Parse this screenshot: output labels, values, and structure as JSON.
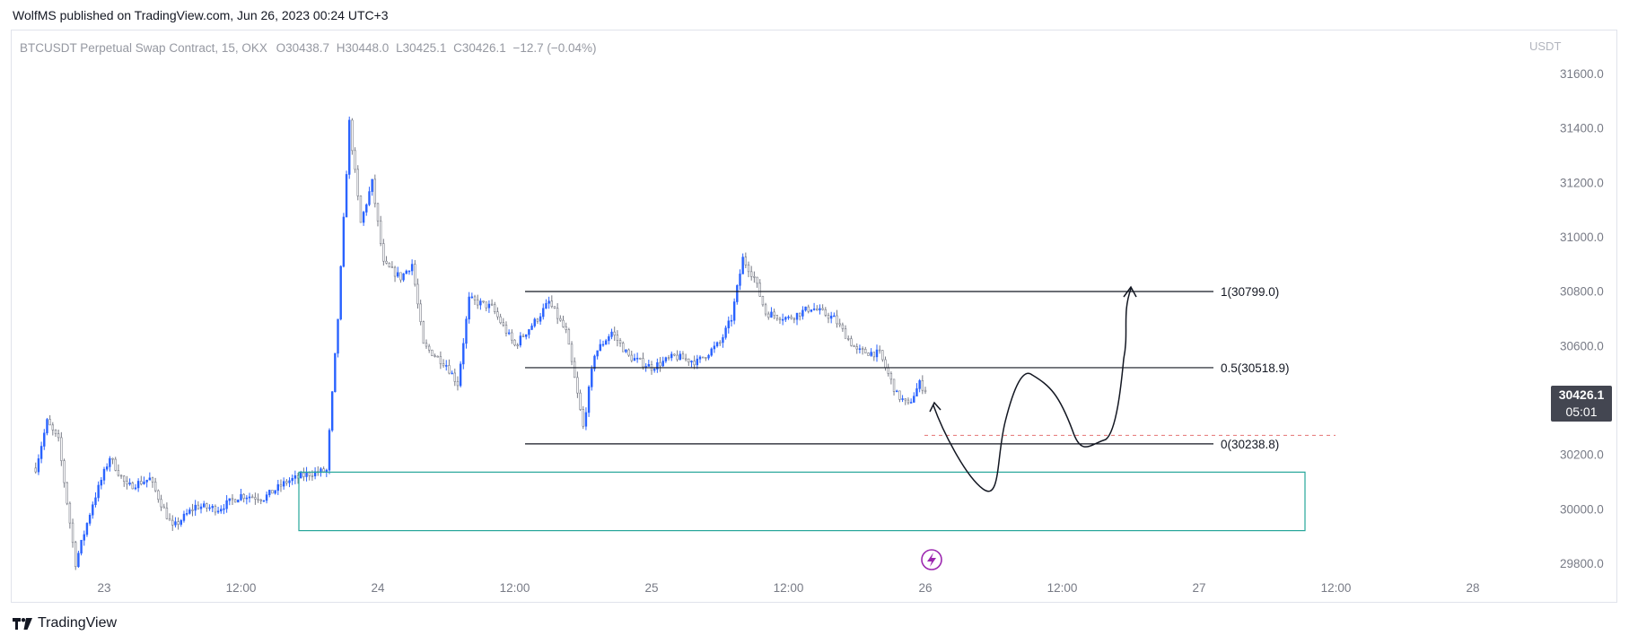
{
  "header": {
    "publisher_text": "WolfMS published on TradingView.com, Jun 26, 2023 00:24 UTC+3"
  },
  "legend": {
    "symbol": "BTCUSDT Perpetual Swap Contract, 15, OKX",
    "open_label": "O",
    "open": "30438.7",
    "high_label": "H",
    "high": "30448.0",
    "low_label": "L",
    "low": "30425.1",
    "close_label": "C",
    "close": "30426.1",
    "change": "−12.7 (−0.04%)"
  },
  "price_axis": {
    "currency": "USDT"
  },
  "last_price": {
    "value": "30426.1",
    "countdown": "05:01"
  },
  "brand": {
    "name": "TradingView",
    "logo": "tradingview-logo"
  },
  "colors": {
    "up": "#2962ff",
    "down": "#787b86",
    "zone": "#26a69a",
    "dashed": "#e57373",
    "event": "#9c27b0"
  },
  "icons": {
    "event_marker": "lightning-icon"
  },
  "chart_data": {
    "type": "candlestick",
    "symbol": "BTCUSDT",
    "interval": "15",
    "ylim": [
      29750,
      31700
    ],
    "yticks": [
      29800,
      30000,
      30200,
      30400,
      30600,
      30800,
      31000,
      31200,
      31400,
      31600
    ],
    "ytick_labels": [
      "29800.0",
      "30000.0",
      "30200.0",
      "30400.0",
      "30600.0",
      "30800.0",
      "31000.0",
      "31200.0",
      "31400.0",
      "31600.0"
    ],
    "x_range": [
      "2023-06-22 18:00",
      "2023-06-28 18:00"
    ],
    "xticks": [
      {
        "t": "2023-06-23 00:00",
        "label": "23"
      },
      {
        "t": "2023-06-23 12:00",
        "label": "12:00"
      },
      {
        "t": "2023-06-24 00:00",
        "label": "24"
      },
      {
        "t": "2023-06-24 12:00",
        "label": "12:00"
      },
      {
        "t": "2023-06-25 00:00",
        "label": "25"
      },
      {
        "t": "2023-06-25 12:00",
        "label": "12:00"
      },
      {
        "t": "2023-06-26 00:00",
        "label": "26"
      },
      {
        "t": "2023-06-26 12:00",
        "label": "12:00"
      },
      {
        "t": "2023-06-27 00:00",
        "label": "27"
      },
      {
        "t": "2023-06-27 12:00",
        "label": "12:00"
      },
      {
        "t": "2023-06-28 00:00",
        "label": "28"
      }
    ],
    "price_path": [
      [
        "2023-06-22 18:00",
        30150
      ],
      [
        "2023-06-22 19:00",
        30320
      ],
      [
        "2023-06-22 20:00",
        30250
      ],
      [
        "2023-06-22 21:30",
        29800
      ],
      [
        "2023-06-22 23:00",
        30020
      ],
      [
        "2023-06-23 00:30",
        30190
      ],
      [
        "2023-06-23 02:00",
        30080
      ],
      [
        "2023-06-23 04:00",
        30110
      ],
      [
        "2023-06-23 06:00",
        29930
      ],
      [
        "2023-06-23 08:00",
        30010
      ],
      [
        "2023-06-23 10:00",
        30000
      ],
      [
        "2023-06-23 12:00",
        30050
      ],
      [
        "2023-06-23 14:00",
        30040
      ],
      [
        "2023-06-23 16:00",
        30100
      ],
      [
        "2023-06-23 18:00",
        30130
      ],
      [
        "2023-06-23 19:30",
        30140
      ],
      [
        "2023-06-23 20:30",
        30700
      ],
      [
        "2023-06-23 21:30",
        31420
      ],
      [
        "2023-06-23 22:30",
        31050
      ],
      [
        "2023-06-23 23:30",
        31200
      ],
      [
        "2023-06-24 00:30",
        30900
      ],
      [
        "2023-06-24 02:00",
        30850
      ],
      [
        "2023-06-24 03:00",
        30900
      ],
      [
        "2023-06-24 04:00",
        30600
      ],
      [
        "2023-06-24 06:00",
        30530
      ],
      [
        "2023-06-24 07:00",
        30460
      ],
      [
        "2023-06-24 08:00",
        30770
      ],
      [
        "2023-06-24 10:00",
        30740
      ],
      [
        "2023-06-24 12:00",
        30600
      ],
      [
        "2023-06-24 14:00",
        30700
      ],
      [
        "2023-06-24 15:00",
        30760
      ],
      [
        "2023-06-24 16:30",
        30650
      ],
      [
        "2023-06-24 17:30",
        30420
      ],
      [
        "2023-06-24 18:00",
        30300
      ],
      [
        "2023-06-24 19:00",
        30570
      ],
      [
        "2023-06-24 20:30",
        30650
      ],
      [
        "2023-06-24 22:00",
        30560
      ],
      [
        "2023-06-25 00:00",
        30520
      ],
      [
        "2023-06-25 02:00",
        30560
      ],
      [
        "2023-06-25 04:00",
        30540
      ],
      [
        "2023-06-25 06:00",
        30610
      ],
      [
        "2023-06-25 07:00",
        30700
      ],
      [
        "2023-06-25 08:00",
        30920
      ],
      [
        "2023-06-25 09:00",
        30850
      ],
      [
        "2023-06-25 10:00",
        30720
      ],
      [
        "2023-06-25 12:00",
        30700
      ],
      [
        "2023-06-25 14:00",
        30740
      ],
      [
        "2023-06-25 16:00",
        30700
      ],
      [
        "2023-06-25 18:00",
        30580
      ],
      [
        "2023-06-25 20:00",
        30570
      ],
      [
        "2023-06-25 21:30",
        30420
      ],
      [
        "2023-06-25 22:30",
        30380
      ],
      [
        "2023-06-25 23:30",
        30460
      ],
      [
        "2023-06-26 00:15",
        30426
      ]
    ],
    "annotations": [
      {
        "type": "horizontal-level",
        "label": "1(30799.0)",
        "value": 30799.0
      },
      {
        "type": "horizontal-level",
        "label": "0.5(30518.9)",
        "value": 30518.9
      },
      {
        "type": "horizontal-level",
        "label": "0(30238.8)",
        "value": 30238.8
      },
      {
        "type": "rectangle-zone",
        "y_range": [
          29920,
          30135
        ],
        "t_range": [
          "2023-06-23 18:00",
          "2023-06-27 12:00"
        ]
      },
      {
        "type": "dashed-level",
        "value": 30270
      },
      {
        "type": "hand-drawn-projection"
      }
    ]
  }
}
